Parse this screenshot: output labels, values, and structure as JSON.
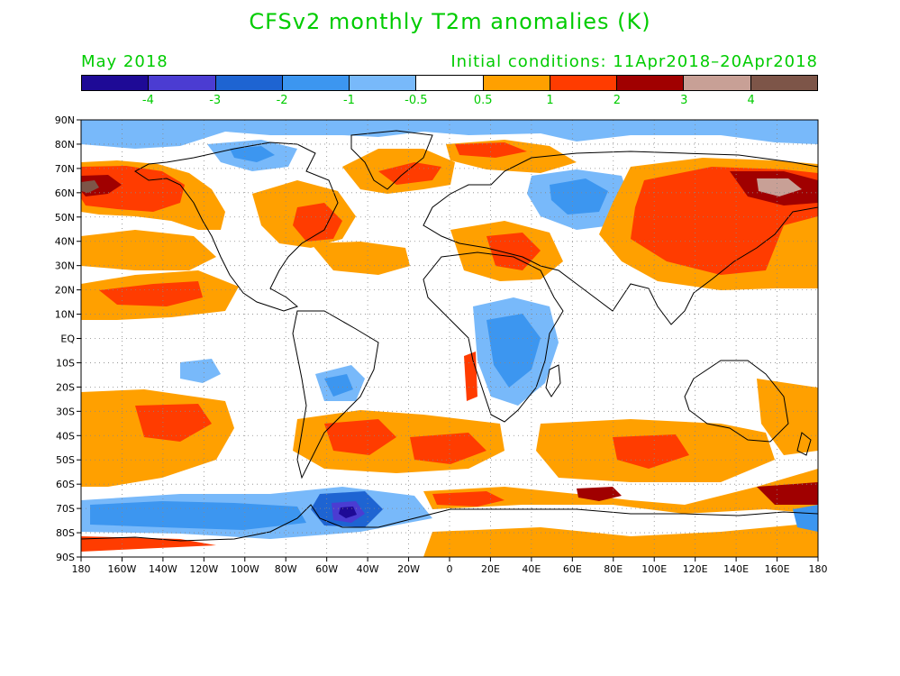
{
  "title": "CFSv2 monthly T2m anomalies (K)",
  "subtitle_left": "May 2018",
  "subtitle_right": "Initial conditions: 11Apr2018–20Apr2018",
  "colorbar": {
    "colors": [
      "#1e0a96",
      "#4b3cd2",
      "#1e64d2",
      "#3c96f0",
      "#78b9fa",
      "#ffffff",
      "#ffa000",
      "#ff3c00",
      "#a00000",
      "#c8a096",
      "#7d5548"
    ],
    "labels": [
      "-4",
      "-3",
      "-2",
      "-1",
      "-0.5",
      "0.5",
      "1",
      "2",
      "3",
      "4"
    ]
  },
  "axes": {
    "lat_labels": [
      "90N",
      "80N",
      "70N",
      "60N",
      "50N",
      "40N",
      "30N",
      "20N",
      "10N",
      "EQ",
      "10S",
      "20S",
      "30S",
      "40S",
      "50S",
      "60S",
      "70S",
      "80S",
      "90S"
    ],
    "lon_labels": [
      "180",
      "160W",
      "140W",
      "120W",
      "100W",
      "80W",
      "60W",
      "40W",
      "20W",
      "0",
      "20E",
      "40E",
      "60E",
      "80E",
      "100E",
      "120E",
      "140E",
      "160E",
      "180"
    ]
  },
  "map": {
    "ocean_color": "#ffffff",
    "coast_color": "#000000",
    "grid": true
  }
}
